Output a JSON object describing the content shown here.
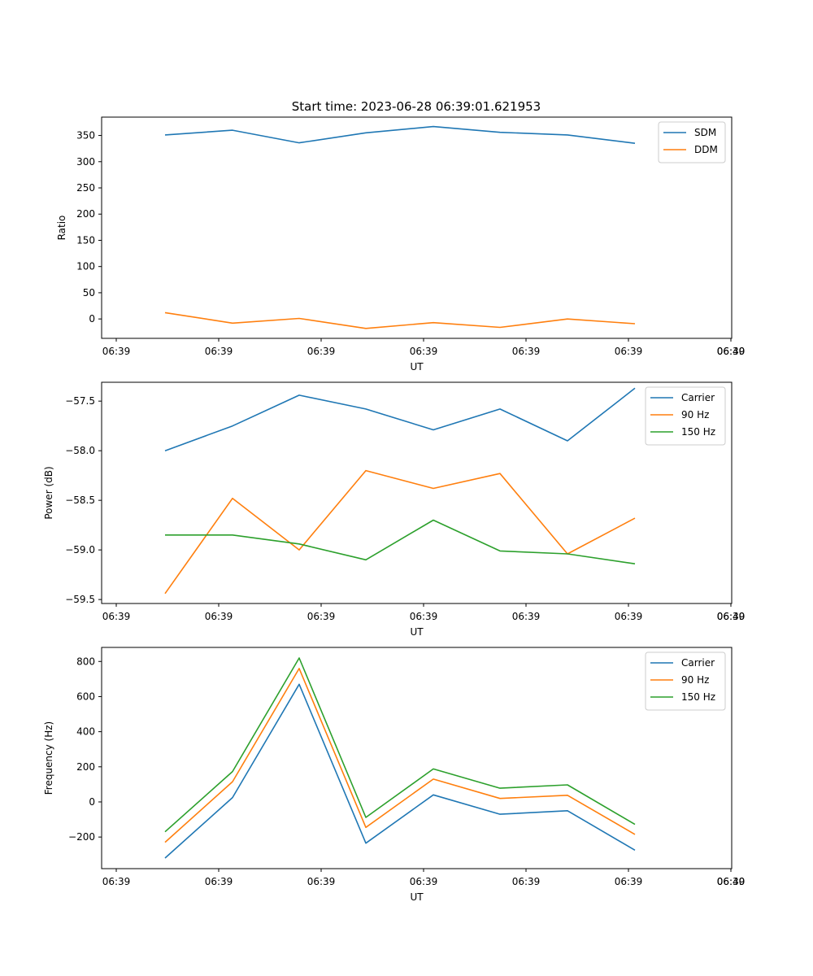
{
  "figure": {
    "title": "Start time: 2023-06-28 06:39:01.621953"
  },
  "colors": {
    "blue": "#1f77b4",
    "orange": "#ff7f0e",
    "green": "#2ca02c"
  },
  "chart_data": [
    {
      "type": "line",
      "title": "Start time: 2023-06-28 06:39:01.621953",
      "xlabel": "UT",
      "ylabel": "Ratio",
      "x_ticks": [
        "06:39",
        "06:39",
        "06:39",
        "06:39",
        "06:39",
        "06:39",
        "06:39",
        "06:40"
      ],
      "y_ticks": [
        "0",
        "50",
        "100",
        "150",
        "200",
        "250",
        "300",
        "350"
      ],
      "ylim": [
        -37,
        385
      ],
      "grid": false,
      "legend": "upper right",
      "series": [
        {
          "name": "SDM",
          "color": "#1f77b4",
          "values": [
            351,
            360,
            336,
            355,
            367,
            356,
            351,
            335
          ]
        },
        {
          "name": "DDM",
          "color": "#ff7f0e",
          "values": [
            12,
            -8,
            1,
            -18,
            -7,
            -16,
            0,
            -9
          ]
        }
      ]
    },
    {
      "type": "line",
      "title": "",
      "xlabel": "UT",
      "ylabel": "Power (dB)",
      "x_ticks": [
        "06:39",
        "06:39",
        "06:39",
        "06:39",
        "06:39",
        "06:39",
        "06:39",
        "06:40"
      ],
      "y_ticks": [
        "−59.5",
        "−59.0",
        "−58.5",
        "−58.0",
        "−57.5"
      ],
      "ylim": [
        -59.54,
        -57.31
      ],
      "grid": false,
      "legend": "upper right",
      "series": [
        {
          "name": "Carrier",
          "color": "#1f77b4",
          "values": [
            -58.0,
            -57.75,
            -57.44,
            -57.58,
            -57.79,
            -57.58,
            -57.9,
            -57.37
          ]
        },
        {
          "name": "90 Hz",
          "color": "#ff7f0e",
          "values": [
            -59.44,
            -58.48,
            -59.0,
            -58.2,
            -58.38,
            -58.23,
            -59.04,
            -58.68
          ]
        },
        {
          "name": "150 Hz",
          "color": "#2ca02c",
          "values": [
            -58.85,
            -58.85,
            -58.94,
            -59.1,
            -58.7,
            -59.01,
            -59.04,
            -59.14
          ]
        }
      ]
    },
    {
      "type": "line",
      "title": "",
      "xlabel": "UT",
      "ylabel": "Frequency (Hz)",
      "x_ticks": [
        "06:39",
        "06:39",
        "06:39",
        "06:39",
        "06:39",
        "06:39",
        "06:39",
        "06:40"
      ],
      "y_ticks": [
        "−200",
        "0",
        "200",
        "400",
        "600",
        "800"
      ],
      "ylim": [
        -380,
        880
      ],
      "grid": false,
      "legend": "upper right",
      "series": [
        {
          "name": "Carrier",
          "color": "#1f77b4",
          "values": [
            -320,
            25,
            670,
            -235,
            40,
            -70,
            -50,
            -275
          ]
        },
        {
          "name": "90 Hz",
          "color": "#ff7f0e",
          "values": [
            -230,
            115,
            760,
            -145,
            130,
            20,
            38,
            -185
          ]
        },
        {
          "name": "150 Hz",
          "color": "#2ca02c",
          "values": [
            -170,
            173,
            820,
            -88,
            188,
            78,
            97,
            -128
          ]
        }
      ]
    }
  ]
}
